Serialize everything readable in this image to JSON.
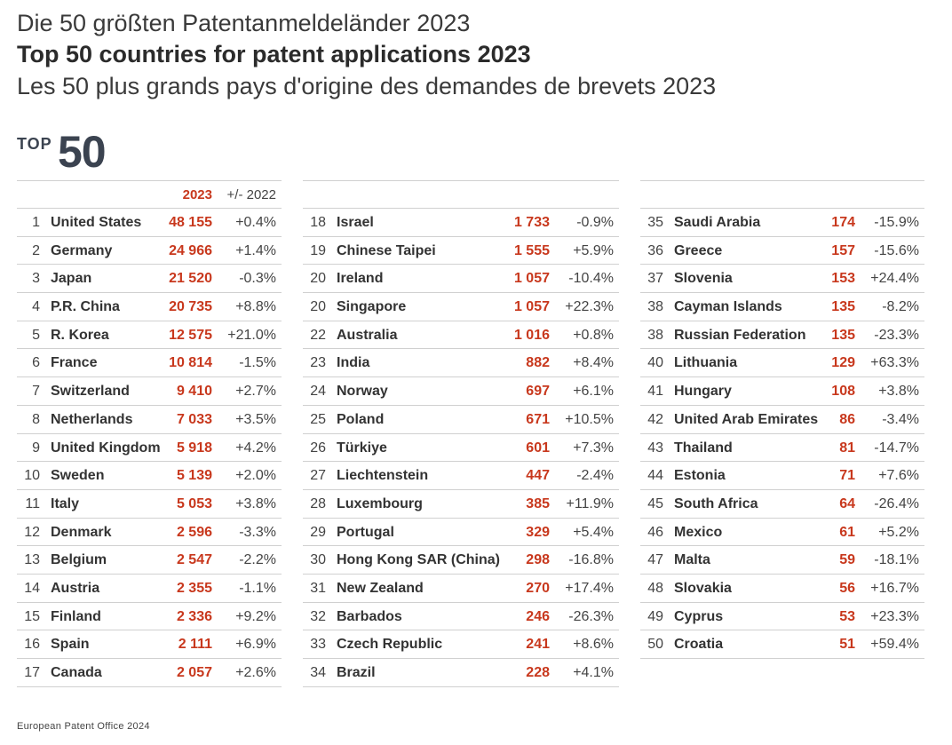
{
  "titles": {
    "de": "Die 50 größten Patentanmeldeländer 2023",
    "en": "Top 50 countries for patent applications 2023",
    "fr": "Les 50 plus grands pays d'origine des demandes de brevets 2023"
  },
  "logo": {
    "top": "TOP",
    "num": "50"
  },
  "header": {
    "year": "2023",
    "diff": "+/- 2022"
  },
  "columns": [
    {
      "rows": [
        {
          "rank": "1",
          "country": "United States",
          "value": "48 155",
          "change": "+0.4%"
        },
        {
          "rank": "2",
          "country": "Germany",
          "value": "24 966",
          "change": "+1.4%"
        },
        {
          "rank": "3",
          "country": "Japan",
          "value": "21 520",
          "change": "-0.3%"
        },
        {
          "rank": "4",
          "country": "P.R. China",
          "value": "20 735",
          "change": "+8.8%"
        },
        {
          "rank": "5",
          "country": "R. Korea",
          "value": "12 575",
          "change": "+21.0%"
        },
        {
          "rank": "6",
          "country": "France",
          "value": "10 814",
          "change": "-1.5%"
        },
        {
          "rank": "7",
          "country": "Switzerland",
          "value": "9 410",
          "change": "+2.7%"
        },
        {
          "rank": "8",
          "country": "Netherlands",
          "value": "7 033",
          "change": "+3.5%"
        },
        {
          "rank": "9",
          "country": "United Kingdom",
          "value": "5 918",
          "change": "+4.2%"
        },
        {
          "rank": "10",
          "country": "Sweden",
          "value": "5 139",
          "change": "+2.0%"
        },
        {
          "rank": "11",
          "country": "Italy",
          "value": "5 053",
          "change": "+3.8%"
        },
        {
          "rank": "12",
          "country": "Denmark",
          "value": "2 596",
          "change": "-3.3%"
        },
        {
          "rank": "13",
          "country": "Belgium",
          "value": "2 547",
          "change": "-2.2%"
        },
        {
          "rank": "14",
          "country": "Austria",
          "value": "2 355",
          "change": "-1.1%"
        },
        {
          "rank": "15",
          "country": "Finland",
          "value": "2 336",
          "change": "+9.2%"
        },
        {
          "rank": "16",
          "country": "Spain",
          "value": "2 111",
          "change": "+6.9%"
        },
        {
          "rank": "17",
          "country": "Canada",
          "value": "2 057",
          "change": "+2.6%"
        }
      ]
    },
    {
      "rows": [
        {
          "rank": "18",
          "country": "Israel",
          "value": "1 733",
          "change": "-0.9%"
        },
        {
          "rank": "19",
          "country": "Chinese Taipei",
          "value": "1 555",
          "change": "+5.9%"
        },
        {
          "rank": "20",
          "country": "Ireland",
          "value": "1 057",
          "change": "-10.4%"
        },
        {
          "rank": "20",
          "country": "Singapore",
          "value": "1 057",
          "change": "+22.3%"
        },
        {
          "rank": "22",
          "country": "Australia",
          "value": "1 016",
          "change": "+0.8%"
        },
        {
          "rank": "23",
          "country": "India",
          "value": "882",
          "change": "+8.4%"
        },
        {
          "rank": "24",
          "country": "Norway",
          "value": "697",
          "change": "+6.1%"
        },
        {
          "rank": "25",
          "country": "Poland",
          "value": "671",
          "change": "+10.5%"
        },
        {
          "rank": "26",
          "country": "Türkiye",
          "value": "601",
          "change": "+7.3%"
        },
        {
          "rank": "27",
          "country": "Liechtenstein",
          "value": "447",
          "change": "-2.4%"
        },
        {
          "rank": "28",
          "country": "Luxembourg",
          "value": "385",
          "change": "+11.9%"
        },
        {
          "rank": "29",
          "country": "Portugal",
          "value": "329",
          "change": "+5.4%"
        },
        {
          "rank": "30",
          "country": "Hong Kong SAR (China)",
          "value": "298",
          "change": "-16.8%"
        },
        {
          "rank": "31",
          "country": "New Zealand",
          "value": "270",
          "change": "+17.4%"
        },
        {
          "rank": "32",
          "country": "Barbados",
          "value": "246",
          "change": "-26.3%"
        },
        {
          "rank": "33",
          "country": "Czech Republic",
          "value": "241",
          "change": "+8.6%"
        },
        {
          "rank": "34",
          "country": "Brazil",
          "value": "228",
          "change": "+4.1%"
        }
      ]
    },
    {
      "rows": [
        {
          "rank": "35",
          "country": "Saudi Arabia",
          "value": "174",
          "change": "-15.9%"
        },
        {
          "rank": "36",
          "country": "Greece",
          "value": "157",
          "change": "-15.6%"
        },
        {
          "rank": "37",
          "country": "Slovenia",
          "value": "153",
          "change": "+24.4%"
        },
        {
          "rank": "38",
          "country": "Cayman Islands",
          "value": "135",
          "change": "-8.2%"
        },
        {
          "rank": "38",
          "country": "Russian Federation",
          "value": "135",
          "change": "-23.3%"
        },
        {
          "rank": "40",
          "country": "Lithuania",
          "value": "129",
          "change": "+63.3%"
        },
        {
          "rank": "41",
          "country": "Hungary",
          "value": "108",
          "change": "+3.8%"
        },
        {
          "rank": "42",
          "country": "United Arab Emirates",
          "value": "86",
          "change": "-3.4%"
        },
        {
          "rank": "43",
          "country": "Thailand",
          "value": "81",
          "change": "-14.7%"
        },
        {
          "rank": "44",
          "country": "Estonia",
          "value": "71",
          "change": "+7.6%"
        },
        {
          "rank": "45",
          "country": "South Africa",
          "value": "64",
          "change": "-26.4%"
        },
        {
          "rank": "46",
          "country": "Mexico",
          "value": "61",
          "change": "+5.2%"
        },
        {
          "rank": "47",
          "country": "Malta",
          "value": "59",
          "change": "-18.1%"
        },
        {
          "rank": "48",
          "country": "Slovakia",
          "value": "56",
          "change": "+16.7%"
        },
        {
          "rank": "49",
          "country": "Cyprus",
          "value": "53",
          "change": "+23.3%"
        },
        {
          "rank": "50",
          "country": "Croatia",
          "value": "51",
          "change": "+59.4%"
        }
      ]
    }
  ],
  "footer": "European Patent Office 2024",
  "colors": {
    "accent": "#c8381d",
    "text": "#333333",
    "rule": "#d0d0d0"
  }
}
